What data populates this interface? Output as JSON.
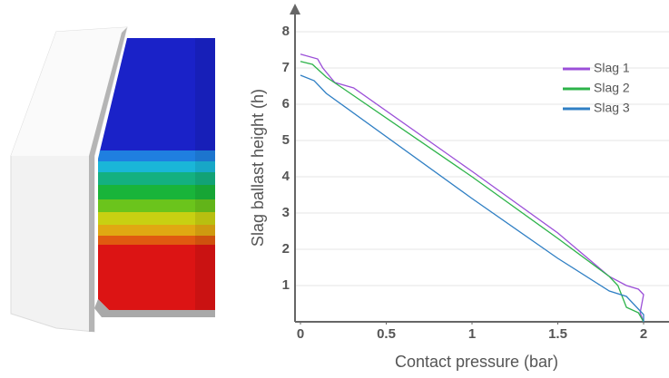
{
  "chart_data": {
    "type": "line",
    "x_label": "Contact pressure (bar)",
    "y_label": "Slag ballast height (h)",
    "xlim": [
      0,
      2
    ],
    "xticks": [
      0,
      0.5,
      1,
      1.5,
      2
    ],
    "ylim": [
      0,
      8.5
    ],
    "yticks": [
      1,
      2,
      3,
      4,
      5,
      6,
      7,
      8
    ],
    "grid": true,
    "legend": "upper right",
    "series": [
      {
        "name": "Slag 1",
        "color": "#9b4fd8",
        "x": [
          0,
          0.1,
          0.13,
          0.2,
          0.31,
          1.0,
          1.5,
          1.8,
          1.9,
          1.97,
          2.0,
          1.98,
          2.0
        ],
        "values": [
          7.38,
          7.25,
          7.0,
          6.6,
          6.45,
          4.15,
          2.45,
          1.25,
          1.0,
          0.9,
          0.75,
          0.25,
          0
        ]
      },
      {
        "name": "Slag 2",
        "color": "#2db34a",
        "x": [
          0,
          0.07,
          0.15,
          0.26,
          1.0,
          1.5,
          1.8,
          1.85,
          1.9,
          1.97,
          2.0
        ],
        "values": [
          7.18,
          7.1,
          6.75,
          6.4,
          4.0,
          2.3,
          1.25,
          1.0,
          0.4,
          0.25,
          0
        ]
      },
      {
        "name": "Slag 3",
        "color": "#2f7fc4",
        "x": [
          0,
          0.08,
          0.15,
          1.0,
          1.5,
          1.8,
          1.9,
          2.0,
          2.0
        ],
        "values": [
          6.8,
          6.65,
          6.3,
          3.4,
          1.75,
          0.85,
          0.7,
          0.2,
          0
        ]
      }
    ]
  }
}
